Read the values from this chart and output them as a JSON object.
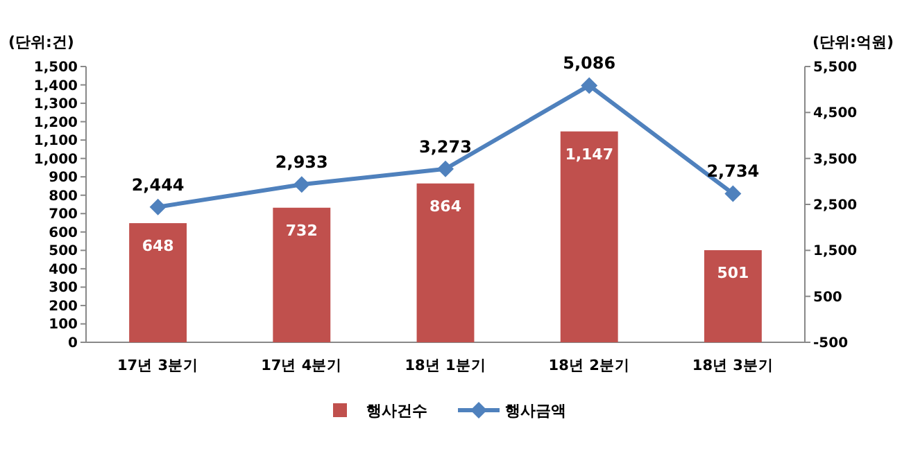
{
  "chart_data": {
    "type": "bar",
    "ylabel": "(단위:건)",
    "y2label": "(단위:억원)",
    "categories": [
      "17년 3분기",
      "17년 4분기",
      "18년 1분기",
      "18년 2분기",
      "18년 3분기"
    ],
    "series": [
      {
        "name": "행사건수",
        "color": "#c0504d",
        "values": [
          648,
          732,
          864,
          1147,
          501
        ],
        "value_labels": [
          "648",
          "732",
          "864",
          "1,147",
          "501"
        ]
      },
      {
        "name": "행사금액",
        "type": "line",
        "axis": "y2",
        "color": "#4f81bd",
        "marker": "diamond",
        "values": [
          2444,
          2933,
          3273,
          5086,
          2734
        ],
        "value_labels": [
          "2,444",
          "2,933",
          "3,273",
          "5,086",
          "2,734"
        ]
      }
    ],
    "ylim": [
      0,
      1500
    ],
    "yticks": [
      0,
      100,
      200,
      300,
      400,
      500,
      600,
      700,
      800,
      900,
      {
        "value": 1000,
        "label": "1,000"
      },
      {
        "value": 1100,
        "label": "1,100"
      },
      {
        "value": 1200,
        "label": "1,200"
      },
      {
        "value": 1300,
        "label": "1,300"
      },
      {
        "value": 1400,
        "label": "1,400"
      },
      {
        "value": 1500,
        "label": "1,500"
      }
    ],
    "y2lim": [
      -500,
      5500
    ],
    "y2ticks": [
      -500,
      500,
      {
        "value": 1500,
        "label": "1,500"
      },
      {
        "value": 2500,
        "label": "2,500"
      },
      {
        "value": 3500,
        "label": "3,500"
      },
      {
        "value": 4500,
        "label": "4,500"
      },
      {
        "value": 5500,
        "label": "5,500"
      }
    ],
    "legend": "bottom",
    "grid": false
  }
}
